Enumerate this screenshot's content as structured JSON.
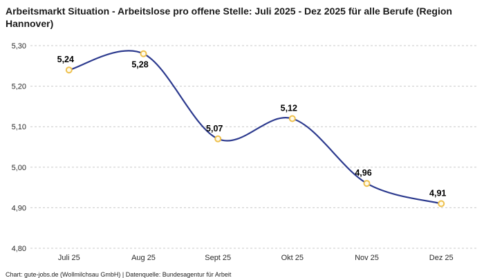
{
  "title": "Arbeitsmarkt Situation - Arbeitslose pro offene Stelle: Juli 2025 - Dez 2025 für alle Berufe (Region Hannover)",
  "footer": "Chart: gute-jobs.de (Wollmilchsau GmbH) | Datenquelle: Bundesagentur für Arbeit",
  "chart_data": {
    "type": "line",
    "title": "Arbeitsmarkt Situation - Arbeitslose pro offene Stelle: Juli 2025 - Dez 2025 für alle Berufe (Region Hannover)",
    "xlabel": "",
    "ylabel": "",
    "categories": [
      "Juli 25",
      "Aug 25",
      "Sept 25",
      "Okt 25",
      "Nov 25",
      "Dez 25"
    ],
    "values": [
      5.24,
      5.28,
      5.07,
      5.12,
      4.96,
      4.91
    ],
    "value_labels": [
      "5,24",
      "5,28",
      "5,07",
      "5,12",
      "4,96",
      "4,91"
    ],
    "label_positions": [
      "above",
      "below",
      "above",
      "above",
      "above",
      "above"
    ],
    "ylim": [
      4.8,
      5.3
    ],
    "y_ticks": {
      "values": [
        5.3,
        5.2,
        5.1,
        5.0,
        4.9,
        4.8
      ],
      "labels": [
        "5,30",
        "5,20",
        "5,10",
        "5,00",
        "4,90",
        "4,80"
      ]
    },
    "grid": "horizontal-dashed",
    "legend": "none",
    "line_color": "#2c3a8e",
    "marker_fill": "#fffbea",
    "marker_stroke": "#eec04d"
  }
}
